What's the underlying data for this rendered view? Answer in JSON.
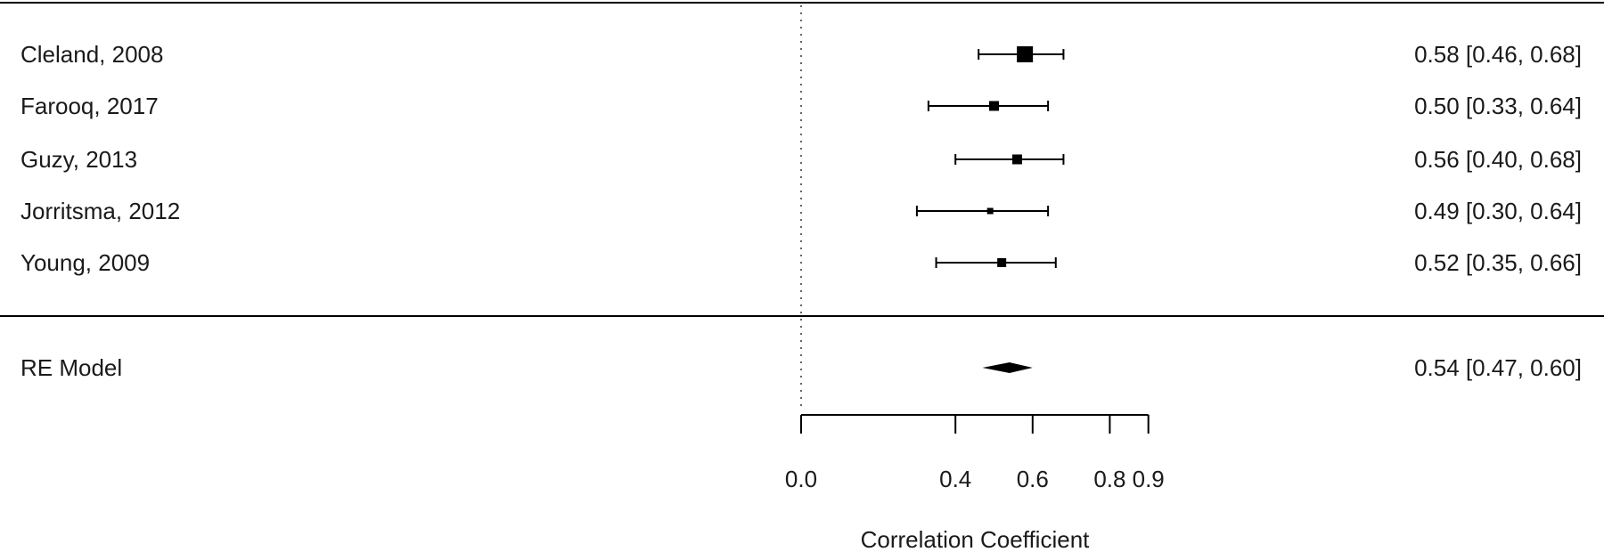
{
  "chart_data": {
    "type": "forest",
    "xlabel": "Correlation Coefficient",
    "reference_line": 0.0,
    "x_ticks": [
      {
        "value": 0.0,
        "label": "0.0"
      },
      {
        "value": 0.4,
        "label": "0.4"
      },
      {
        "value": 0.6,
        "label": "0.6"
      },
      {
        "value": 0.8,
        "label": "0.8"
      },
      {
        "value": 0.9,
        "label": "0.9"
      }
    ],
    "studies": [
      {
        "label": "Cleland, 2008",
        "estimate": 0.58,
        "lower": 0.46,
        "upper": 0.68,
        "text": "0.58 [0.46, 0.68]"
      },
      {
        "label": "Farooq, 2017",
        "estimate": 0.5,
        "lower": 0.33,
        "upper": 0.64,
        "text": "0.50 [0.33, 0.64]"
      },
      {
        "label": "Guzy, 2013",
        "estimate": 0.56,
        "lower": 0.4,
        "upper": 0.68,
        "text": "0.56 [0.40, 0.68]"
      },
      {
        "label": "Jorritsma, 2012",
        "estimate": 0.49,
        "lower": 0.3,
        "upper": 0.64,
        "text": "0.49 [0.30, 0.64]"
      },
      {
        "label": "Young, 2009",
        "estimate": 0.52,
        "lower": 0.35,
        "upper": 0.66,
        "text": "0.52 [0.35, 0.66]"
      }
    ],
    "summary": {
      "label": "RE Model",
      "estimate": 0.54,
      "lower": 0.47,
      "upper": 0.6,
      "text": "0.54 [0.47, 0.60]"
    }
  }
}
